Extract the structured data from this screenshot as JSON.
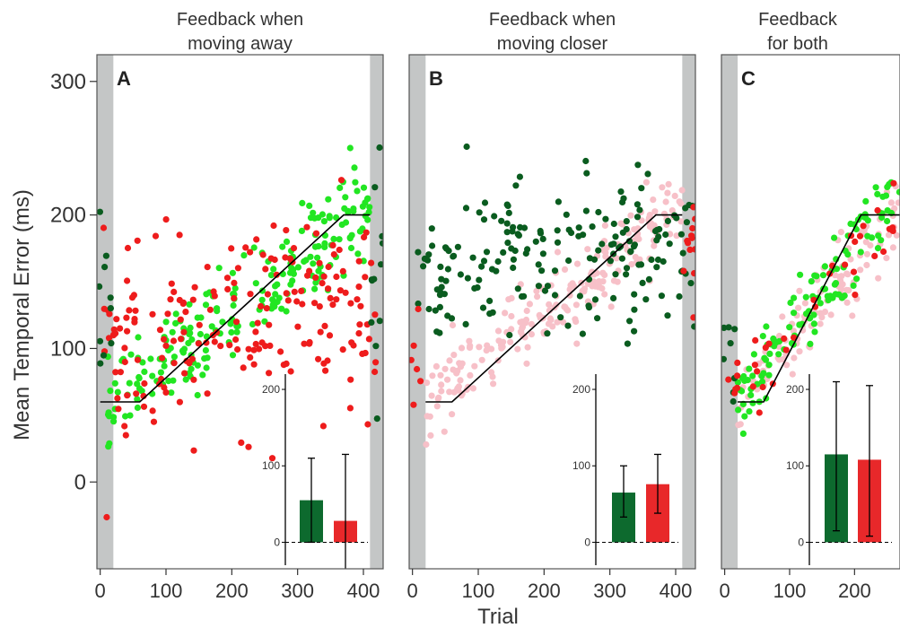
{
  "figure": {
    "ylabel": "Mean Temporal Error (ms)",
    "xlabel": "Trial"
  },
  "colors": {
    "dark_green": "#0a5c1f",
    "bright_green": "#22e622",
    "red": "#ee1c1c",
    "pink": "#f7c0c8",
    "bar_green": "#0d6a2e",
    "bar_red": "#e8282a",
    "shade": "#c4c6c6"
  },
  "chart_data": [
    {
      "type": "scatter",
      "panel_label": "A",
      "title_lines": [
        "Feedback when",
        "moving away"
      ],
      "xlim": [
        -5,
        430
      ],
      "ylim": [
        -65,
        320
      ],
      "yticks": [
        0,
        100,
        200,
        300
      ],
      "xticks": [
        0,
        100,
        200,
        300,
        400
      ],
      "shade_regions": [
        [
          -5,
          20
        ],
        [
          410,
          430
        ]
      ],
      "schedule": {
        "x": [
          0,
          60,
          370,
          410
        ],
        "y": [
          60,
          60,
          200,
          200
        ]
      },
      "series": [
        {
          "color": "bright_green",
          "role": "increasing",
          "x_range": [
            10,
            410
          ],
          "y_start": 55,
          "y_end": 210,
          "noise": 18,
          "count": 220
        },
        {
          "color": "red",
          "role": "scattered",
          "x_range": [
            5,
            430
          ],
          "y_start": 95,
          "y_end": 135,
          "noise": 35,
          "count": 200
        },
        {
          "color": "dark_green",
          "role": "baseline",
          "x_range": [
            -5,
            20
          ],
          "y_start": 130,
          "y_end": 130,
          "noise": 30,
          "count": 10
        },
        {
          "color": "dark_green",
          "role": "washout",
          "x_range": [
            410,
            430
          ],
          "y_start": 140,
          "y_end": 140,
          "noise": 50,
          "count": 12
        }
      ],
      "inset": {
        "yticks": [
          0,
          100,
          200
        ],
        "ylim": [
          -30,
          220
        ],
        "bars": [
          {
            "color": "bar_green",
            "value": 55,
            "err_low": 0,
            "err_high": 110
          },
          {
            "color": "bar_red",
            "value": 28,
            "err_low": -55,
            "err_high": 115
          }
        ]
      }
    },
    {
      "type": "scatter",
      "panel_label": "B",
      "title_lines": [
        "Feedback when",
        "moving closer"
      ],
      "xlim": [
        -5,
        430
      ],
      "ylim": [
        -65,
        320
      ],
      "yticks": [
        0,
        100,
        200,
        300
      ],
      "xticks": [
        0,
        100,
        200,
        300,
        400
      ],
      "shade_regions": [
        [
          -5,
          20
        ],
        [
          410,
          430
        ]
      ],
      "schedule": {
        "x": [
          20,
          60,
          370,
          410
        ],
        "y": [
          60,
          60,
          200,
          200
        ]
      },
      "series": [
        {
          "color": "pink",
          "role": "increasing",
          "x_range": [
            20,
            410
          ],
          "y_start": 55,
          "y_end": 210,
          "noise": 15,
          "count": 220
        },
        {
          "color": "dark_green",
          "role": "scattered",
          "x_range": [
            5,
            430
          ],
          "y_start": 160,
          "y_end": 175,
          "noise": 28,
          "count": 190
        },
        {
          "color": "red",
          "role": "washout",
          "x_range": [
            410,
            430
          ],
          "y_start": 175,
          "y_end": 175,
          "noise": 30,
          "count": 12
        },
        {
          "color": "red",
          "role": "baseline",
          "x_range": [
            -5,
            20
          ],
          "y_start": 90,
          "y_end": 90,
          "noise": 25,
          "count": 6
        }
      ],
      "inset": {
        "yticks": [
          0,
          100,
          200
        ],
        "ylim": [
          -30,
          220
        ],
        "bars": [
          {
            "color": "bar_green",
            "value": 65,
            "err_low": 33,
            "err_high": 100
          },
          {
            "color": "bar_red",
            "value": 76,
            "err_low": 38,
            "err_high": 115
          }
        ]
      }
    },
    {
      "type": "scatter",
      "panel_label": "C",
      "title_lines": [
        "Feedback",
        "for both"
      ],
      "xlim": [
        -5,
        270
      ],
      "ylim": [
        -65,
        320
      ],
      "yticks": [
        0,
        100,
        200,
        300
      ],
      "xticks": [
        0,
        100,
        200
      ],
      "shade_regions": [
        [
          -5,
          20
        ]
      ],
      "schedule": {
        "x": [
          20,
          60,
          210,
          270
        ],
        "y": [
          60,
          60,
          200,
          200
        ]
      },
      "series": [
        {
          "color": "pink",
          "role": "increasing",
          "x_range": [
            20,
            270
          ],
          "y_start": 55,
          "y_end": 210,
          "noise": 14,
          "count": 120
        },
        {
          "color": "bright_green",
          "role": "increasing",
          "x_range": [
            20,
            270
          ],
          "y_start": 60,
          "y_end": 215,
          "noise": 16,
          "count": 120
        },
        {
          "color": "red",
          "role": "increasing",
          "x_range": [
            20,
            270
          ],
          "y_start": 60,
          "y_end": 210,
          "noise": 14,
          "count": 30
        },
        {
          "color": "dark_green",
          "role": "baseline",
          "x_range": [
            -5,
            20
          ],
          "y_start": 80,
          "y_end": 80,
          "noise": 25,
          "count": 8
        },
        {
          "color": "red",
          "role": "baseline",
          "x_range": [
            -5,
            20
          ],
          "y_start": 75,
          "y_end": 75,
          "noise": 20,
          "count": 6
        }
      ],
      "inset": {
        "yticks": [
          0,
          100,
          200
        ],
        "ylim": [
          -30,
          220
        ],
        "bars": [
          {
            "color": "bar_green",
            "value": 115,
            "err_low": 15,
            "err_high": 210
          },
          {
            "color": "bar_red",
            "value": 108,
            "err_low": 8,
            "err_high": 205
          }
        ]
      }
    }
  ]
}
